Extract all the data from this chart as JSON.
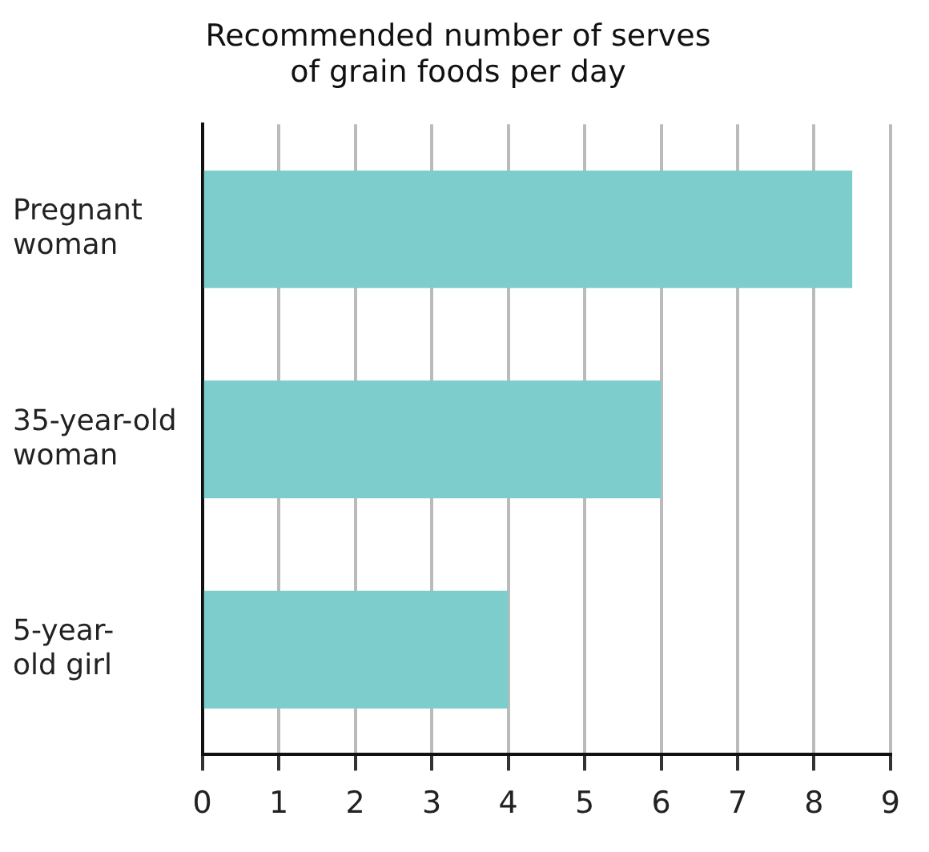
{
  "chart_data": {
    "type": "bar",
    "orientation": "horizontal",
    "title": "Recommended number of serves\nof grain foods per day",
    "categories": [
      "Pregnant\nwoman",
      "35-year-old\nwoman",
      "5-year-\nold girl"
    ],
    "values": [
      8.5,
      6,
      4
    ],
    "color": "#7ecdcd",
    "xlim": [
      0,
      9
    ],
    "xticks": [
      0,
      1,
      2,
      3,
      4,
      5,
      6,
      7,
      8,
      9
    ],
    "grid": "x",
    "legend": false
  }
}
